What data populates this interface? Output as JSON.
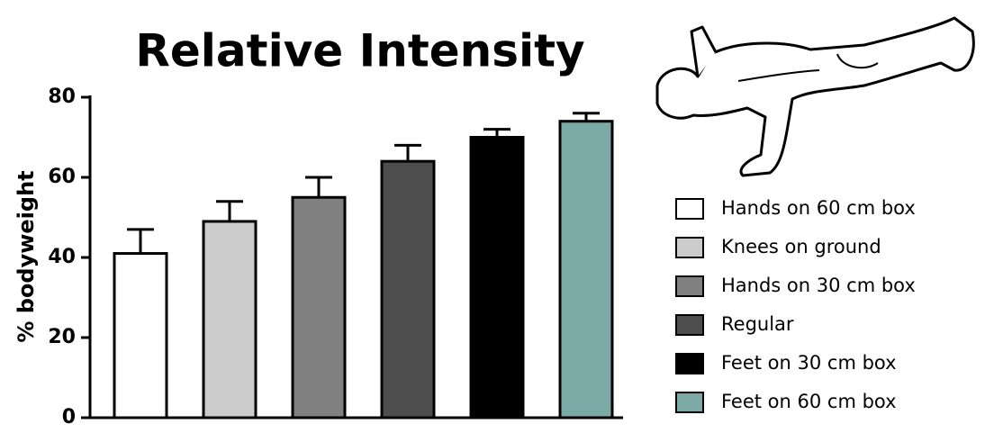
{
  "chart_data": {
    "type": "bar",
    "title": "Relative Intensity",
    "y_label": "% bodyweight",
    "categories": [
      null
    ],
    "series": [
      {
        "name": "Hands on 60 cm box",
        "color": "#ffffff",
        "values": [
          41
        ],
        "errors": [
          6
        ]
      },
      {
        "name": "Knees on ground",
        "color": "#cccccc",
        "values": [
          49
        ],
        "errors": [
          5
        ]
      },
      {
        "name": "Hands on 30 cm box",
        "color": "#808080",
        "values": [
          55
        ],
        "errors": [
          5
        ]
      },
      {
        "name": "Regular",
        "color": "#4d4d4d",
        "values": [
          64
        ],
        "errors": [
          4
        ]
      },
      {
        "name": "Feet on 30 cm box",
        "color": "#000000",
        "values": [
          70
        ],
        "errors": [
          2
        ]
      },
      {
        "name": "Feet on 60 cm box",
        "color": "#7aa9a6",
        "values": [
          74
        ],
        "errors": [
          2
        ]
      }
    ],
    "ylim": [
      0,
      80
    ],
    "yticks": [
      0,
      20,
      40,
      60,
      80
    ],
    "grid": false
  }
}
